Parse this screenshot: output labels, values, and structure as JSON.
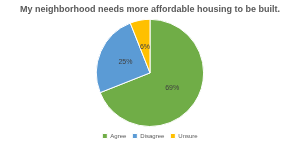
{
  "chart_data": {
    "type": "pie",
    "title": "My neighborhood needs more affordable housing to be built.",
    "categories": [
      "Agree",
      "Disagree",
      "Unsure"
    ],
    "values": [
      69,
      25,
      6
    ],
    "value_labels": [
      "69%",
      "25%",
      "6%"
    ],
    "colors": [
      "#70ad47",
      "#5b9bd5",
      "#ffc000"
    ],
    "legend": "bottom",
    "data_labels": true
  }
}
